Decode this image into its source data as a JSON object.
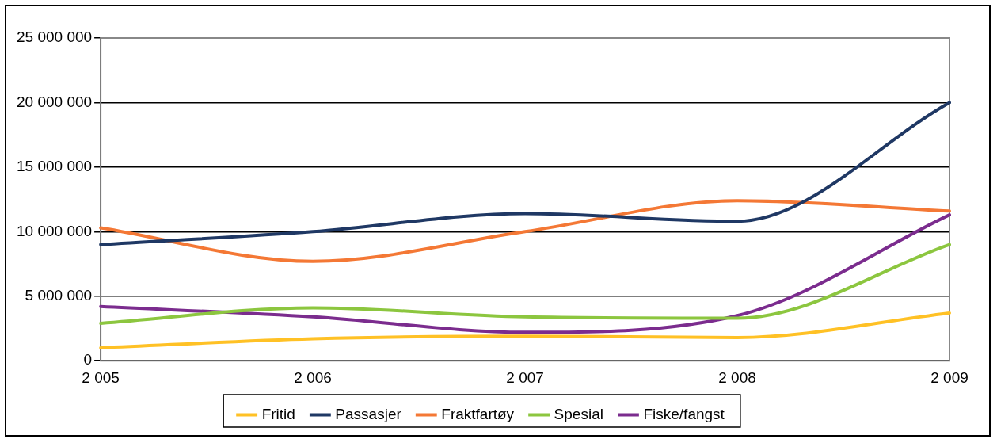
{
  "chart_data": {
    "type": "line",
    "categories": [
      "2 005",
      "2 006",
      "2 007",
      "2 008",
      "2 009"
    ],
    "series": [
      {
        "name": "Fritid",
        "color": "#ffc125",
        "values": [
          1000000,
          1700000,
          1900000,
          1800000,
          3700000
        ]
      },
      {
        "name": "Passasjer",
        "color": "#1f3864",
        "values": [
          9000000,
          10000000,
          11400000,
          10800000,
          20000000
        ]
      },
      {
        "name": "Fraktfartøy",
        "color": "#f47835",
        "values": [
          10300000,
          7700000,
          10000000,
          12400000,
          11600000
        ]
      },
      {
        "name": "Spesial",
        "color": "#8cc63f",
        "values": [
          2900000,
          4100000,
          3400000,
          3300000,
          9000000
        ]
      },
      {
        "name": "Fiske/fangst",
        "color": "#7b2c8e",
        "values": [
          4200000,
          3400000,
          2200000,
          3500000,
          11300000
        ]
      }
    ],
    "ylim": [
      0,
      25000000
    ],
    "yticks": [
      {
        "value": 0,
        "label": "0"
      },
      {
        "value": 5000000,
        "label": "5 000 000"
      },
      {
        "value": 10000000,
        "label": "10 000 000"
      },
      {
        "value": 15000000,
        "label": "15 000 000"
      },
      {
        "value": 20000000,
        "label": "20 000 000"
      },
      {
        "value": 25000000,
        "label": "25 000 000"
      }
    ],
    "grid": "y",
    "legend": "bottom",
    "marker": "none",
    "line_style": "solid"
  }
}
